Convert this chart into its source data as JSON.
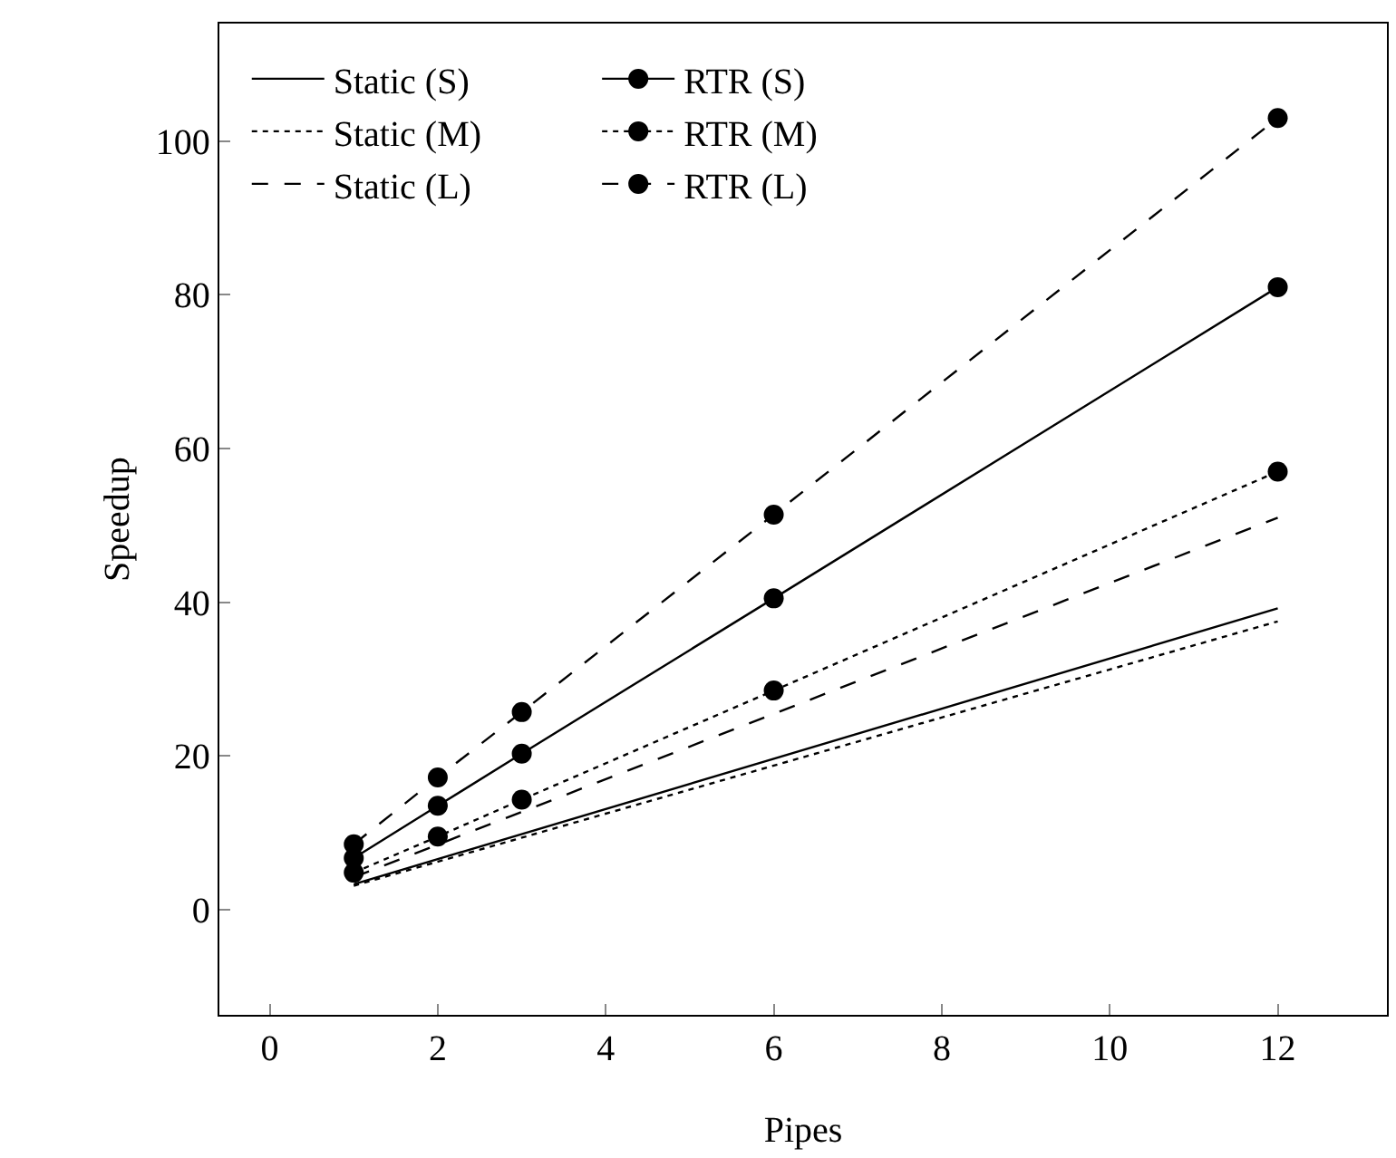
{
  "chart_data": {
    "type": "line",
    "xlabel": "Pipes",
    "ylabel": "Speedup",
    "xlim": [
      -0.6,
      13.3
    ],
    "xticks": [
      0,
      2,
      4,
      6,
      8,
      10,
      12
    ],
    "ylim": [
      -13.7,
      115.3
    ],
    "yticks": [
      0,
      20,
      40,
      60,
      80,
      100
    ],
    "grid": false,
    "legend": "top left",
    "series": [
      {
        "name": "Static (S)",
        "color": "#000000",
        "x": [
          1,
          12
        ],
        "values": [
          3.3,
          39.2
        ],
        "line_style": "solid",
        "marker": "none"
      },
      {
        "name": "Static (M)",
        "color": "#000000",
        "x": [
          1,
          12
        ],
        "values": [
          3.1,
          37.5
        ],
        "line_style": "dotted",
        "marker": "none"
      },
      {
        "name": "Static (L)",
        "color": "#000000",
        "x": [
          1,
          12
        ],
        "values": [
          4.2,
          51
        ],
        "line_style": "dashed",
        "marker": "none"
      },
      {
        "name": "RTR (S)",
        "color": "#000000",
        "x": [
          1,
          2,
          3,
          6,
          12
        ],
        "values": [
          6.7,
          13.5,
          20.3,
          40.5,
          81
        ],
        "line_style": "solid",
        "marker": "circle"
      },
      {
        "name": "RTR (M)",
        "color": "#000000",
        "x": [
          1,
          2,
          3,
          6,
          12
        ],
        "values": [
          4.8,
          9.5,
          14.3,
          28.5,
          57
        ],
        "line_style": "dotted",
        "marker": "circle"
      },
      {
        "name": "RTR (L)",
        "color": "#000000",
        "x": [
          1,
          2,
          3,
          6,
          12
        ],
        "values": [
          8.5,
          17.2,
          25.7,
          51.4,
          103
        ],
        "line_style": "dashed",
        "marker": "circle"
      }
    ]
  }
}
